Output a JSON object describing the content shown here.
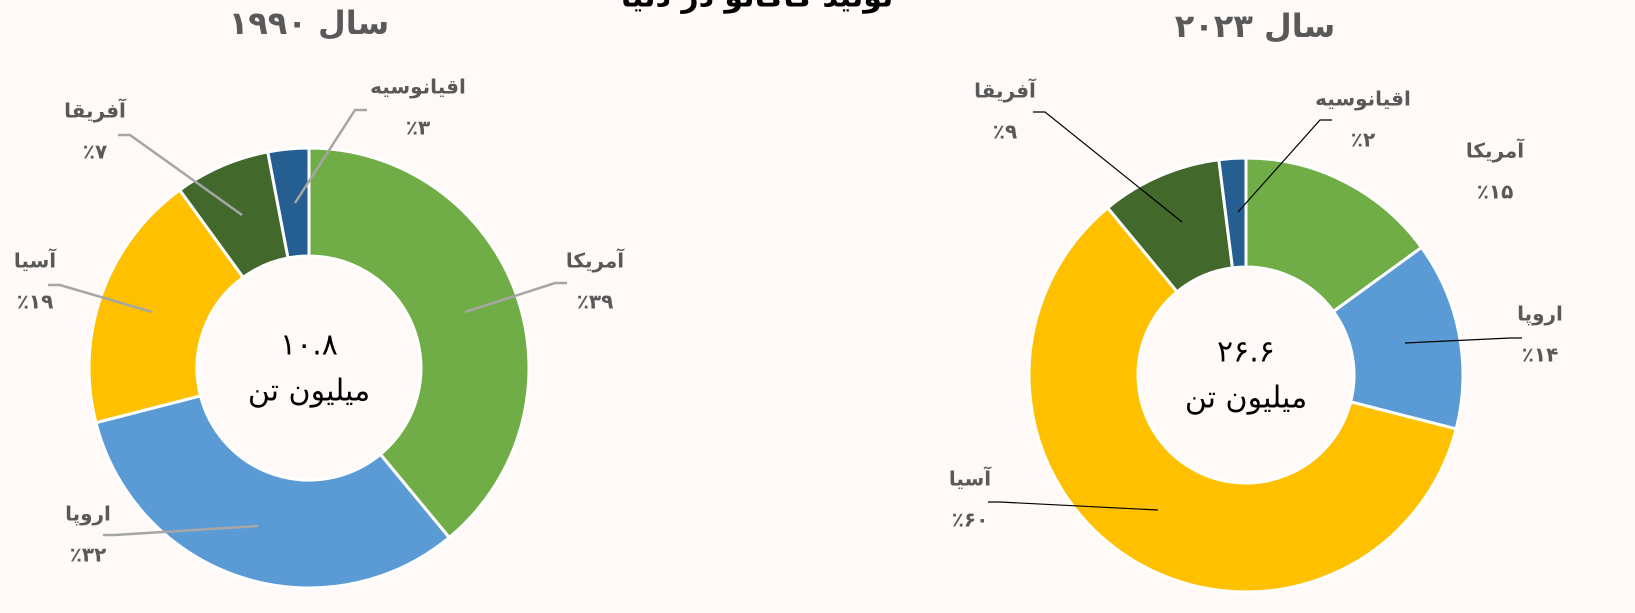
{
  "title": "تولید کاکائو در دنیا",
  "chart_data": [
    {
      "type": "donut",
      "title": "سال ۱۹۹۰",
      "center_text": [
        "۱۰.۸",
        "میلیون تن"
      ],
      "categories": [
        "آمریکا",
        "اروپا",
        "آسیا",
        "آفریقا",
        "اقیانوسیه"
      ],
      "values": [
        39,
        32,
        19,
        7,
        3
      ],
      "value_labels": [
        "٪۳۹",
        "٪۳۲",
        "٪۱۹",
        "٪۷",
        "٪۳"
      ],
      "colors": [
        "#70ad47",
        "#5b9bd5",
        "#ffc000",
        "#43682b",
        "#255e91"
      ]
    },
    {
      "type": "donut",
      "title": "سال ۲۰۲۳",
      "center_text": [
        "۲۶.۶",
        "میلیون تن"
      ],
      "categories": [
        "آمریکا",
        "اروپا",
        "آسیا",
        "آفریقا",
        "اقیانوسیه"
      ],
      "values": [
        15,
        14,
        60,
        9,
        2
      ],
      "value_labels": [
        "٪۱۵",
        "٪۱۴",
        "٪۶۰",
        "٪۹",
        "٪۲"
      ],
      "colors": [
        "#70ad47",
        "#5b9bd5",
        "#ffc000",
        "#43682b",
        "#255e91"
      ]
    }
  ]
}
